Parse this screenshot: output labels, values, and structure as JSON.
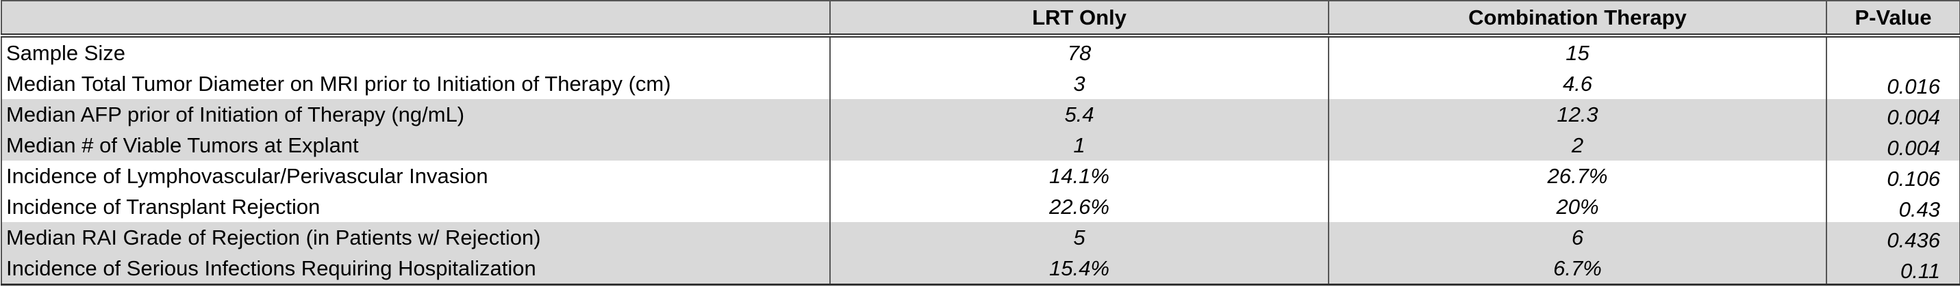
{
  "table": {
    "header": [
      "LRT Only",
      "Combination Therapy",
      "P-Value"
    ],
    "rows": [
      [
        "Sample Size",
        "78",
        "15"
      ],
      [
        "Median Total Tumor Diameter on MRI prior to Initiation of Therapy (cm)",
        "3",
        "4.6",
        "0.016"
      ],
      [
        "Median AFP prior of Initiation of Therapy (ng/mL)",
        "5.4",
        "12.3",
        "0.004"
      ],
      [
        "Median # of Viable Tumors at Explant",
        "1",
        "2",
        "0.004"
      ],
      [
        "Incidence of Lymphovascular/Perivascular Invasion",
        "14.1%",
        "26.7%",
        "0.106"
      ],
      [
        "Incidence of Transplant Rejection",
        "22.6%",
        "20%",
        "0.43"
      ],
      [
        "Median RAI Grade of Rejection (in Patients w/ Rejection)",
        "5",
        "6",
        "0.436"
      ],
      [
        "Incidence of Serious Infections Requiring Hospitalization",
        "15.4%",
        "6.7%",
        "0.11"
      ]
    ]
  }
}
